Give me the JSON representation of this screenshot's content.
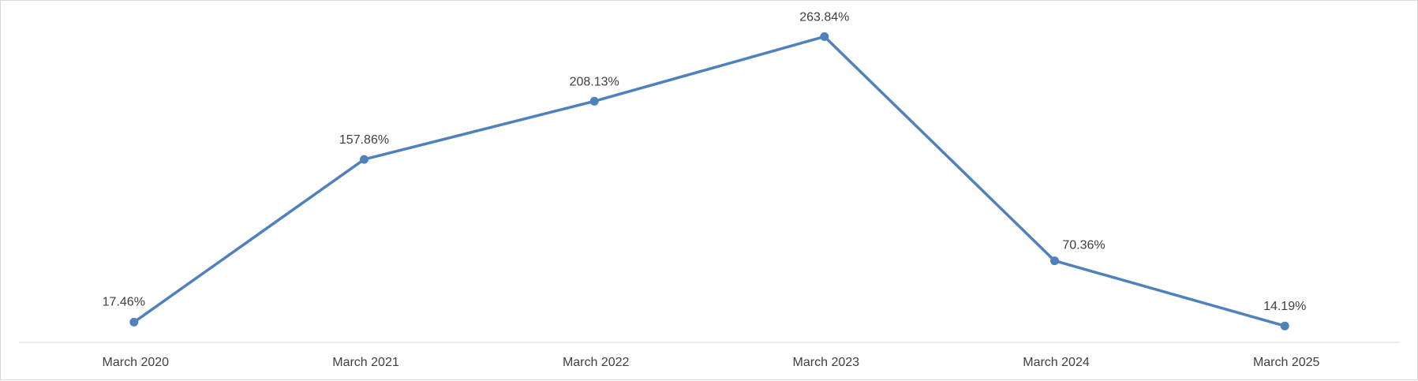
{
  "chart_data": {
    "type": "line",
    "categories": [
      "March 2020",
      "March 2021",
      "March 2022",
      "March 2023",
      "March 2024",
      "March 2025"
    ],
    "series": [
      {
        "values": [
          17.46,
          157.86,
          208.13,
          263.84,
          70.36,
          14.19
        ],
        "value_labels": [
          "17.46%",
          "157.86%",
          "208.13%",
          "263.84%",
          "70.36%",
          "14.19%"
        ],
        "color": "#4f81bd"
      }
    ],
    "title": "",
    "xlabel": "",
    "ylabel": "",
    "ylim": [
      0,
      290
    ],
    "grid": false,
    "legend": "none",
    "axis_color": "#d9d9d9",
    "text_color": "#404040"
  }
}
